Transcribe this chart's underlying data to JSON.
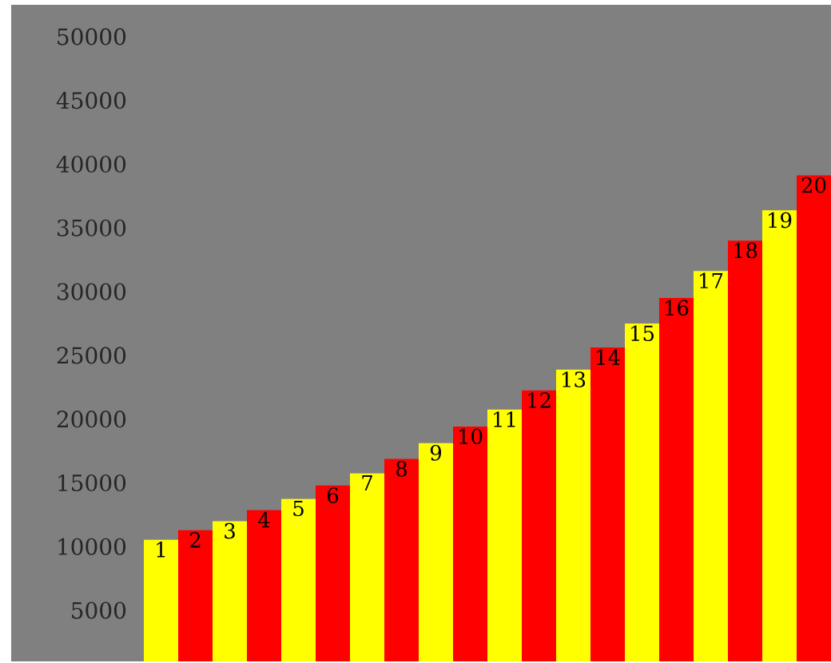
{
  "chart_data": {
    "type": "bar",
    "categories": [
      "1",
      "2",
      "3",
      "4",
      "5",
      "6",
      "7",
      "8",
      "9",
      "10",
      "11",
      "12",
      "13",
      "14",
      "15",
      "16",
      "17",
      "18",
      "19",
      "20"
    ],
    "values": [
      10540,
      11290,
      12000,
      12875,
      13750,
      14790,
      15750,
      16875,
      18125,
      19420,
      20750,
      22250,
      23875,
      25625,
      27500,
      29500,
      31625,
      34000,
      36375,
      39125
    ],
    "colors": [
      "#ffff00",
      "#ff0000",
      "#ffff00",
      "#ff0000",
      "#ffff00",
      "#ff0000",
      "#ffff00",
      "#ff0000",
      "#ffff00",
      "#ff0000",
      "#ffff00",
      "#ff0000",
      "#ffff00",
      "#ff0000",
      "#ffff00",
      "#ff0000",
      "#ffff00",
      "#ff0000",
      "#ffff00",
      "#ff0000"
    ],
    "ylim": [
      1000,
      52500
    ],
    "yticks": [
      5000,
      10000,
      15000,
      20000,
      25000,
      30000,
      35000,
      40000,
      45000,
      50000
    ]
  }
}
